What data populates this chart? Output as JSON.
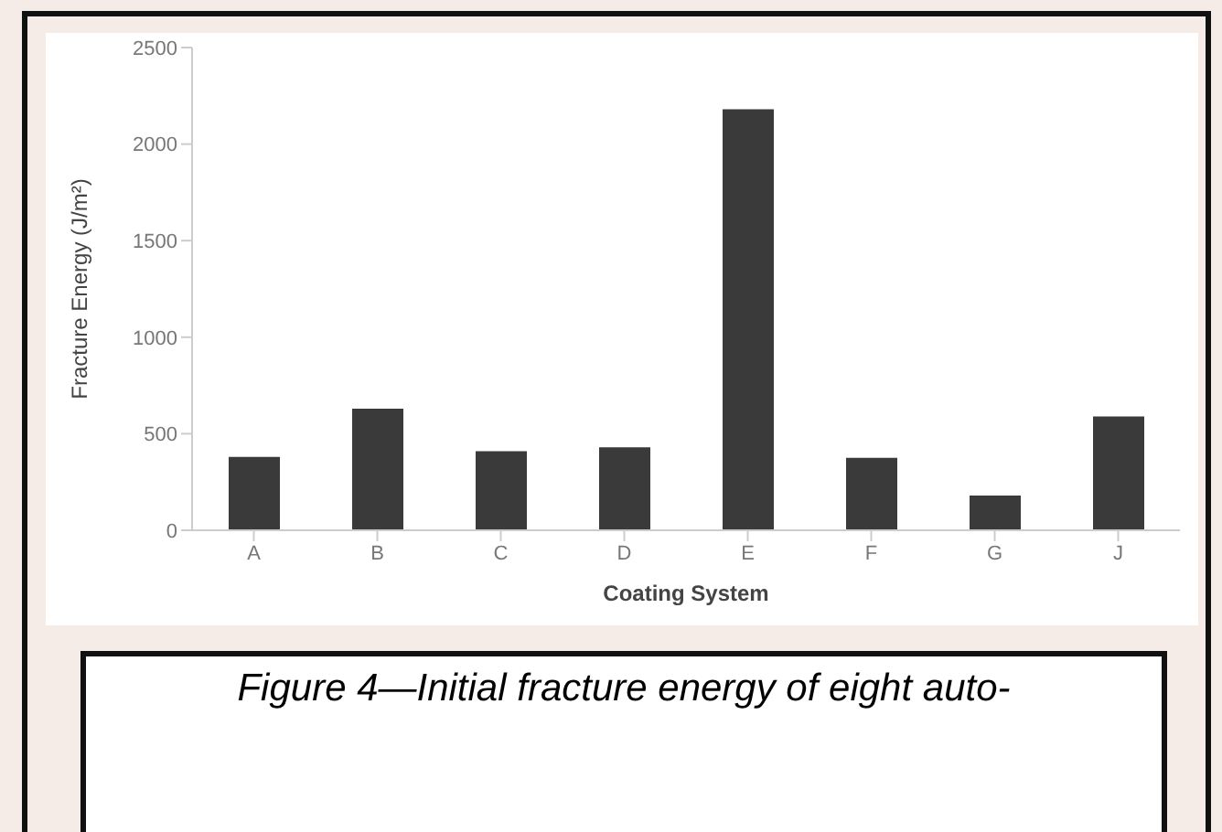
{
  "chart_data": {
    "type": "bar",
    "xlabel": "Coating System",
    "ylabel": "Fracture Energy (J/m²)",
    "categories": [
      "A",
      "B",
      "C",
      "D",
      "E",
      "F",
      "G",
      "J"
    ],
    "values": [
      380,
      630,
      410,
      430,
      2180,
      375,
      180,
      590
    ],
    "color": "#3a3a3a",
    "ylim": [
      0,
      2500
    ],
    "yticks": [
      0,
      500,
      1000,
      1500,
      2000,
      2500
    ],
    "grid": false,
    "annotations": [
      "Figure 4—Initial fracture energy of eight auto-"
    ]
  }
}
